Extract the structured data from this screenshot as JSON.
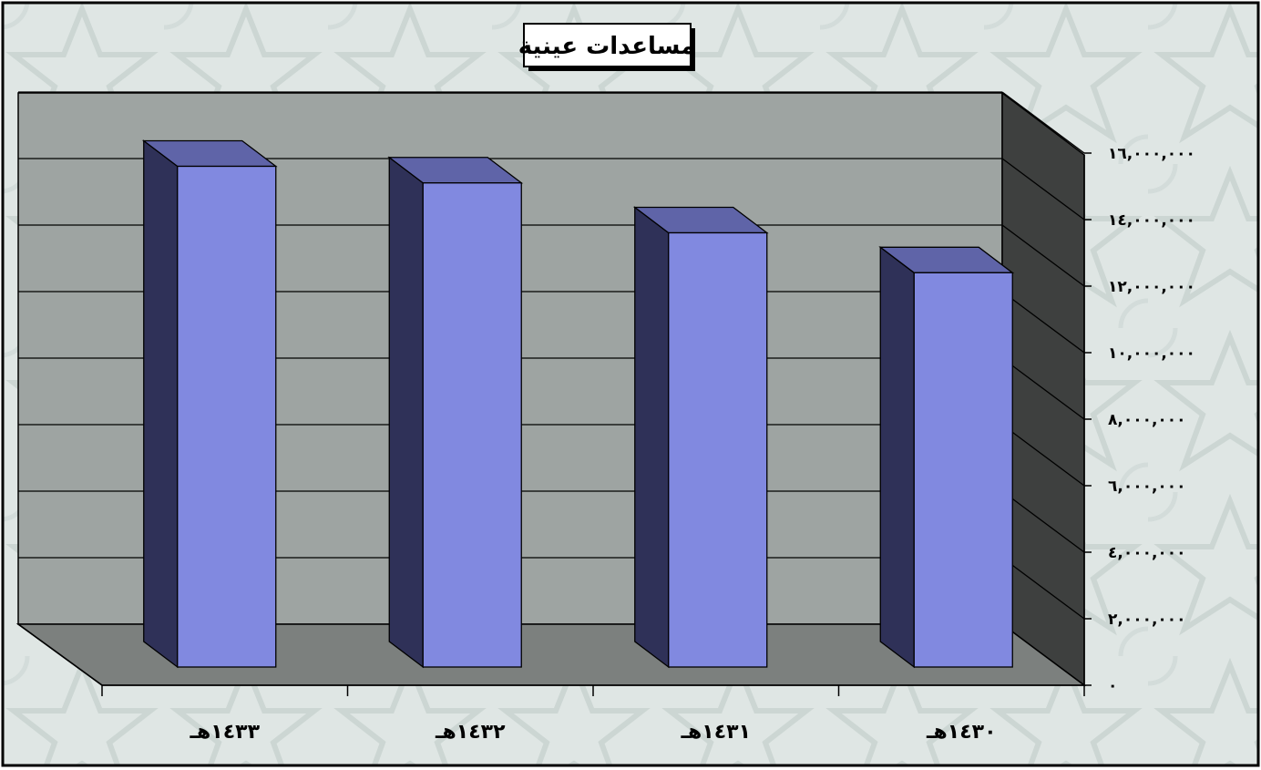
{
  "chart_data": {
    "type": "bar",
    "style": "3d-column",
    "title": "مساعدات عينية",
    "categories": [
      "١٤٣٣هـ",
      "١٤٣٢هـ",
      "١٤٣١هـ",
      "١٤٣٠هـ"
    ],
    "series": [
      {
        "values": [
          15000000,
          14500000,
          13000000,
          11800000
        ]
      }
    ],
    "y_ticks": [
      "٠",
      "٢,٠٠٠,٠٠٠",
      "٤,٠٠٠,٠٠٠",
      "٦,٠٠٠,٠٠٠",
      "٨,٠٠٠,٠٠٠",
      "١٠,٠٠٠,٠٠٠",
      "١٢,٠٠٠,٠٠٠",
      "١٤,٠٠٠,٠٠٠",
      "١٦,٠٠٠,٠٠٠"
    ],
    "ylim": [
      0,
      18000000
    ],
    "y_axis_side": "right",
    "grid": true,
    "legend": "none",
    "colors": {
      "bar_front": "#8189e0",
      "bar_top": "#5f64a8",
      "bar_side": "#2f3158",
      "back_wall": "#9ea4a2",
      "side_wall": "#3e403f",
      "floor": "#7c807e",
      "background": "#dfe6e4"
    }
  }
}
